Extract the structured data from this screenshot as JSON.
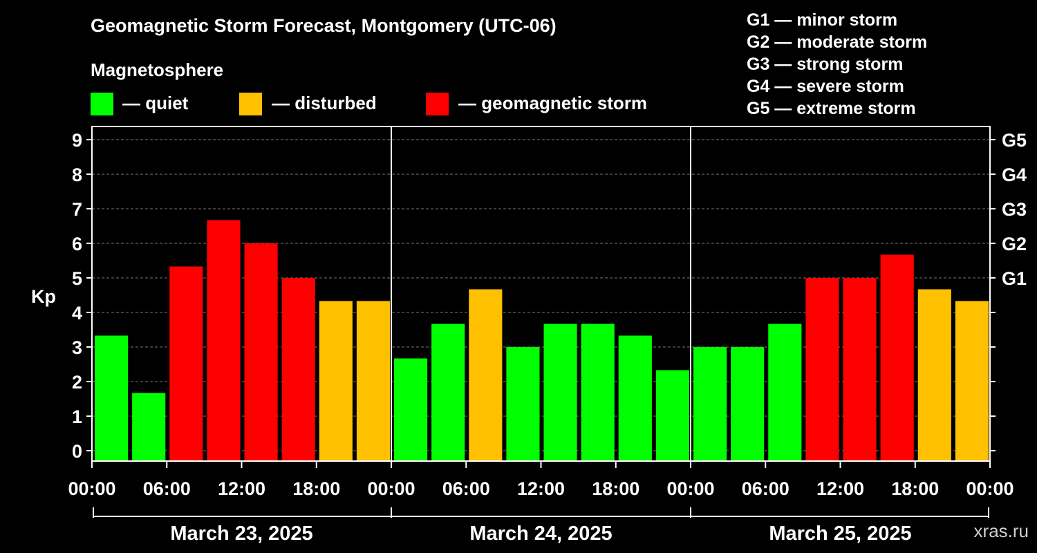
{
  "title": "Geomagnetic Storm Forecast, Montgomery (UTC-06)",
  "legend": {
    "heading": "Magnetosphere",
    "items": [
      {
        "label": "— quiet",
        "color": "#00ff00"
      },
      {
        "label": "— disturbed",
        "color": "#ffc000"
      },
      {
        "label": "— geomagnetic storm",
        "color": "#ff0000"
      }
    ]
  },
  "g_levels": [
    "G1 — minor storm",
    "G2 — moderate storm",
    "G3 — strong storm",
    "G4 — severe storm",
    "G5 — extreme storm"
  ],
  "watermark": "xras.ru",
  "chart_data": {
    "type": "bar",
    "ylabel": "Kp",
    "ylim": [
      0,
      9
    ],
    "y_ticks": [
      "0",
      "1",
      "2",
      "3",
      "4",
      "5",
      "6",
      "7",
      "8",
      "9"
    ],
    "right_axis": [
      {
        "kp": 5,
        "label": "G1"
      },
      {
        "kp": 6,
        "label": "G2"
      },
      {
        "kp": 7,
        "label": "G3"
      },
      {
        "kp": 8,
        "label": "G4"
      },
      {
        "kp": 9,
        "label": "G5"
      }
    ],
    "x_tick_labels": [
      "00:00",
      "06:00",
      "12:00",
      "18:00",
      "00:00",
      "06:00",
      "12:00",
      "18:00",
      "00:00",
      "06:00",
      "12:00",
      "18:00",
      "00:00"
    ],
    "days": [
      "March 23, 2025",
      "March 24, 2025",
      "March 25, 2025"
    ],
    "bars_per_day": 8,
    "colors": {
      "quiet": "#00ff00",
      "disturbed": "#ffc000",
      "storm": "#ff0000"
    },
    "values": [
      3.33,
      1.67,
      5.33,
      6.67,
      6.0,
      5.0,
      4.33,
      4.33,
      2.67,
      3.67,
      4.67,
      3.0,
      3.67,
      3.67,
      3.33,
      2.33,
      3.0,
      3.0,
      3.67,
      5.0,
      5.0,
      5.67,
      4.67,
      4.33
    ],
    "levels": [
      "quiet",
      "quiet",
      "storm",
      "storm",
      "storm",
      "storm",
      "disturbed",
      "disturbed",
      "quiet",
      "quiet",
      "disturbed",
      "quiet",
      "quiet",
      "quiet",
      "quiet",
      "quiet",
      "quiet",
      "quiet",
      "quiet",
      "storm",
      "storm",
      "storm",
      "disturbed",
      "disturbed"
    ],
    "grid": "dashed horizontal"
  }
}
